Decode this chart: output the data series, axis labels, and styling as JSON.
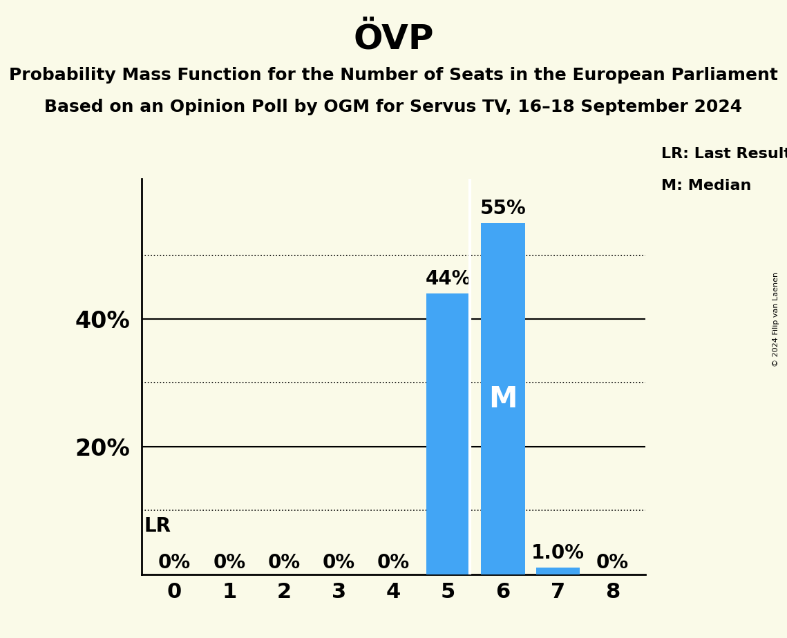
{
  "title": "ÖVP",
  "subtitle1": "Probability Mass Function for the Number of Seats in the European Parliament",
  "subtitle2": "Based on an Opinion Poll by OGM for Servus TV, 16–18 September 2024",
  "copyright": "© 2024 Filip van Laenen",
  "seats": [
    0,
    1,
    2,
    3,
    4,
    5,
    6,
    7,
    8
  ],
  "probabilities": [
    0.0,
    0.0,
    0.0,
    0.0,
    0.0,
    0.44,
    0.55,
    0.01,
    0.0
  ],
  "bar_color": "#42a5f5",
  "bar_labels": [
    "0%",
    "0%",
    "0%",
    "0%",
    "0%",
    "44%",
    "55%",
    "1.0%",
    "0%"
  ],
  "median_seat": 6,
  "lr_seat": 5,
  "background_color": "#fafae8",
  "ylim": [
    0,
    0.62
  ],
  "yticks": [
    0.0,
    0.1,
    0.2,
    0.3,
    0.4,
    0.5
  ],
  "ytick_labels": [
    "",
    "",
    "20%",
    "",
    "40%",
    ""
  ],
  "solid_gridlines": [
    0.2,
    0.4
  ],
  "dotted_gridlines": [
    0.1,
    0.3,
    0.5
  ],
  "legend_lr": "LR: Last Result",
  "legend_m": "M: Median",
  "title_fontsize": 36,
  "subtitle_fontsize": 18,
  "label_fontsize": 16,
  "tick_fontsize": 22,
  "bar_label_fontsize": 20,
  "ytick_label_fontsize": 24
}
